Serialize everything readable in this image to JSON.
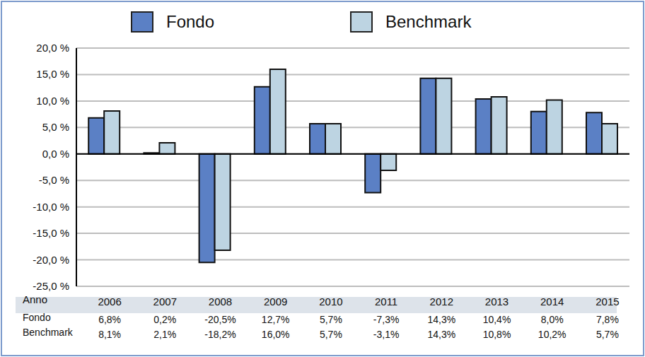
{
  "chart_data": {
    "type": "bar",
    "xlabel": "Anno",
    "categories": [
      "2006",
      "2007",
      "2008",
      "2009",
      "2010",
      "2011",
      "2012",
      "2013",
      "2014",
      "2015"
    ],
    "series": [
      {
        "name": "Fondo",
        "color": "#5b80c5",
        "values": [
          6.8,
          0.2,
          -20.5,
          12.7,
          5.7,
          -7.3,
          14.3,
          10.4,
          8.0,
          7.8
        ],
        "value_labels": [
          "6,8%",
          "0,2%",
          "-20,5%",
          "12,7%",
          "5,7%",
          "-7,3%",
          "14,3%",
          "10,4%",
          "8,0%",
          "7,8%"
        ]
      },
      {
        "name": "Benchmark",
        "color": "#bdd4e2",
        "values": [
          8.1,
          2.1,
          -18.2,
          16.0,
          5.7,
          -3.1,
          14.3,
          10.8,
          10.2,
          5.7
        ],
        "value_labels": [
          "8,1%",
          "2,1%",
          "-18,2%",
          "16,0%",
          "5,7%",
          "-3,1%",
          "14,3%",
          "10,8%",
          "10,2%",
          "5,7%"
        ]
      }
    ],
    "ylim": [
      -25,
      20
    ],
    "yticks": [
      {
        "value": -25,
        "label": "-25,0 %"
      },
      {
        "value": -20,
        "label": "-20,0 %"
      },
      {
        "value": -15,
        "label": "-15,0 %"
      },
      {
        "value": -10,
        "label": "-10,0 %"
      },
      {
        "value": -5,
        "label": "-5,0 %"
      },
      {
        "value": 0,
        "label": "0,0 %"
      },
      {
        "value": 5,
        "label": "5,0 %"
      },
      {
        "value": 10,
        "label": "10,0 %"
      },
      {
        "value": 15,
        "label": "15,0 %"
      },
      {
        "value": 20,
        "label": "20,0 %"
      }
    ],
    "grid": true,
    "legend": "top"
  }
}
